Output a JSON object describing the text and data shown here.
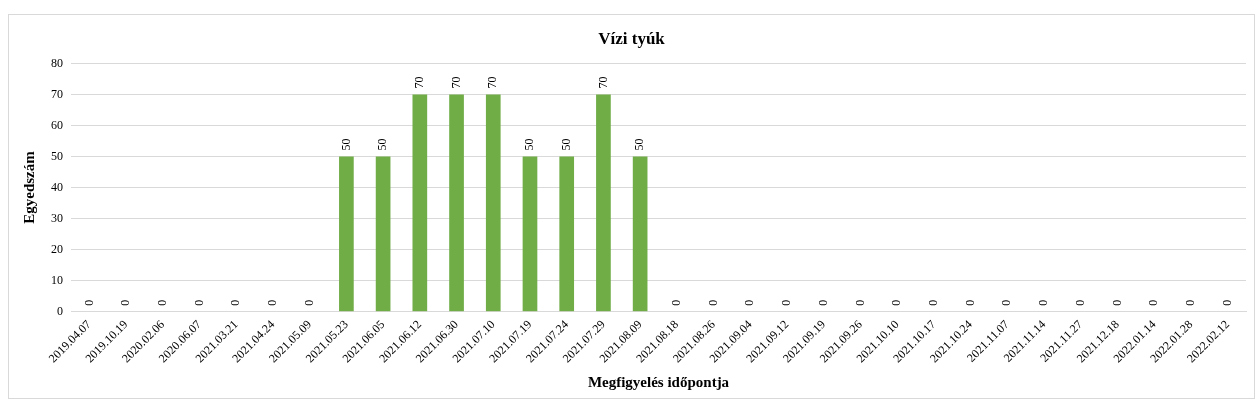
{
  "chart_data": {
    "type": "bar",
    "title": "Vízi tyúk",
    "xlabel": "Megfigyelés időpontja",
    "ylabel": "Egyedszám",
    "categories": [
      "2019.04.07",
      "2019.10.19",
      "2020.02.06",
      "2020.06.07",
      "2021.03.21",
      "2021.04.24",
      "2021.05.09",
      "2021.05.23",
      "2021.06.05",
      "2021.06.12",
      "2021.06.30",
      "2021.07.10",
      "2021.07.19",
      "2021.07.24",
      "2021.07.29",
      "2021.08.09",
      "2021.08.18",
      "2021.08.26",
      "2021.09.04",
      "2021.09.12",
      "2021.09.19",
      "2021.09.26",
      "2021.10.10",
      "2021.10.17",
      "2021.10.24",
      "2021.11.07",
      "2021.11.14",
      "2021.11.27",
      "2021.12.18",
      "2022.01.14",
      "2022.01.28",
      "2022.02.12"
    ],
    "values": [
      0,
      0,
      0,
      0,
      0,
      0,
      0,
      50,
      50,
      70,
      70,
      70,
      50,
      50,
      70,
      50,
      0,
      0,
      0,
      0,
      0,
      0,
      0,
      0,
      0,
      0,
      0,
      0,
      0,
      0,
      0,
      0
    ],
    "color": "#70ad47",
    "ylim": [
      0,
      80
    ],
    "yticks": [
      0,
      10,
      20,
      30,
      40,
      50,
      60,
      70,
      80
    ],
    "grid": "y",
    "legend": false,
    "data_labels": true
  }
}
